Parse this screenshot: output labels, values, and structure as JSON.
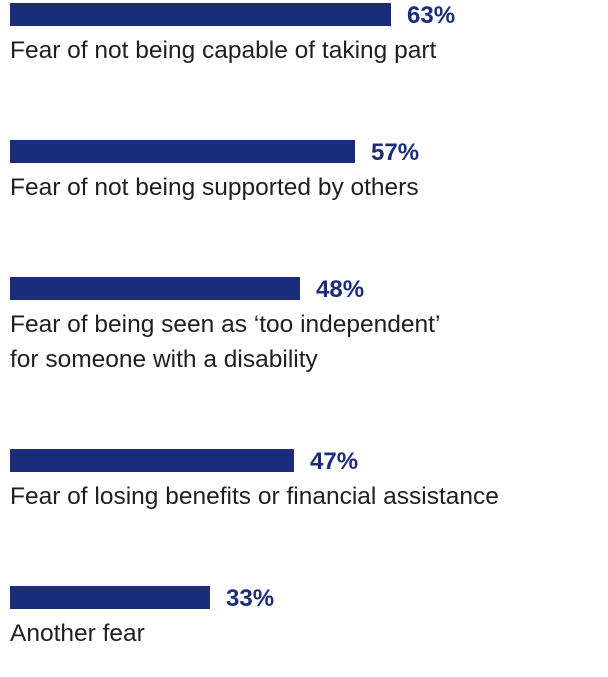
{
  "chart_data": {
    "type": "bar",
    "orientation": "horizontal",
    "unit": "%",
    "bar_color": "#1b2d7a",
    "label_color": "#1f1f1f",
    "categories": [
      [
        "Fear of not being capable of taking part"
      ],
      [
        "Fear of not being supported by others"
      ],
      [
        "Fear of being seen as ‘too independent’",
        "for someone with a disability"
      ],
      [
        "Fear of losing benefits or financial assistance"
      ],
      [
        "Another fear"
      ]
    ],
    "values": [
      63,
      57,
      48,
      47,
      33
    ],
    "value_labels": [
      "63%",
      "57%",
      "48%",
      "47%",
      "33%"
    ]
  }
}
